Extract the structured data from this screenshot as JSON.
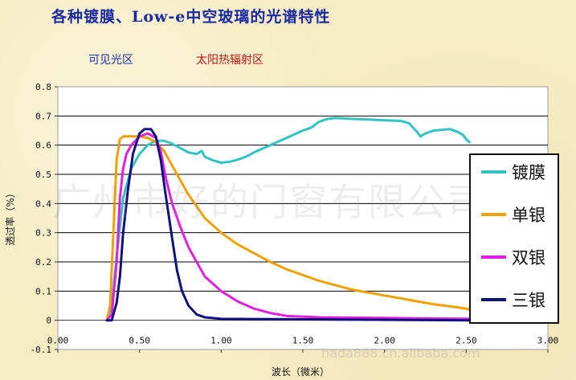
{
  "header": {
    "title": "各种镀膜、Low-e中空玻璃的光谱特性",
    "region_visible": "可见光区",
    "region_solar": "太阳热辐射区"
  },
  "watermarks": [
    "广州市好的门窗有限公司",
    "hada888.cn.alibaba.com"
  ],
  "chart_data": {
    "type": "line",
    "xlabel": "波长（微米）",
    "ylabel": "透过率（%）",
    "xlim": [
      0,
      3.0
    ],
    "ylim": [
      -0.1,
      0.8
    ],
    "x_ticks": [
      "0.00",
      "0.50",
      "1.00",
      "1.50",
      "2.00",
      "2.50",
      "3.00"
    ],
    "y_ticks": [
      "-0.1",
      "0",
      "0.1",
      "0.2",
      "0.3",
      "0.4",
      "0.5",
      "0.6",
      "0.7",
      "0.8"
    ],
    "grid": "horizontal",
    "legend_position": "right",
    "series": [
      {
        "name": "镀膜",
        "color": "#33c2c2",
        "points": [
          [
            0.3,
            0.0
          ],
          [
            0.33,
            0.05
          ],
          [
            0.36,
            0.22
          ],
          [
            0.4,
            0.42
          ],
          [
            0.45,
            0.52
          ],
          [
            0.5,
            0.57
          ],
          [
            0.55,
            0.6
          ],
          [
            0.6,
            0.615
          ],
          [
            0.65,
            0.615
          ],
          [
            0.7,
            0.605
          ],
          [
            0.75,
            0.59
          ],
          [
            0.8,
            0.575
          ],
          [
            0.85,
            0.57
          ],
          [
            0.88,
            0.58
          ],
          [
            0.9,
            0.56
          ],
          [
            0.95,
            0.548
          ],
          [
            1.0,
            0.54
          ],
          [
            1.05,
            0.543
          ],
          [
            1.1,
            0.55
          ],
          [
            1.15,
            0.56
          ],
          [
            1.2,
            0.575
          ],
          [
            1.3,
            0.6
          ],
          [
            1.4,
            0.625
          ],
          [
            1.5,
            0.65
          ],
          [
            1.55,
            0.66
          ],
          [
            1.6,
            0.68
          ],
          [
            1.65,
            0.69
          ],
          [
            1.7,
            0.693
          ],
          [
            1.8,
            0.69
          ],
          [
            1.9,
            0.688
          ],
          [
            2.0,
            0.685
          ],
          [
            2.1,
            0.683
          ],
          [
            2.15,
            0.675
          ],
          [
            2.2,
            0.645
          ],
          [
            2.22,
            0.63
          ],
          [
            2.25,
            0.64
          ],
          [
            2.3,
            0.65
          ],
          [
            2.4,
            0.655
          ],
          [
            2.45,
            0.645
          ],
          [
            2.48,
            0.635
          ],
          [
            2.5,
            0.62
          ],
          [
            2.52,
            0.61
          ]
        ]
      },
      {
        "name": "单银",
        "color": "#f0a000",
        "points": [
          [
            0.3,
            0.0
          ],
          [
            0.32,
            0.05
          ],
          [
            0.34,
            0.3
          ],
          [
            0.36,
            0.55
          ],
          [
            0.38,
            0.62
          ],
          [
            0.4,
            0.63
          ],
          [
            0.45,
            0.63
          ],
          [
            0.5,
            0.63
          ],
          [
            0.55,
            0.625
          ],
          [
            0.6,
            0.61
          ],
          [
            0.65,
            0.58
          ],
          [
            0.7,
            0.53
          ],
          [
            0.75,
            0.48
          ],
          [
            0.8,
            0.43
          ],
          [
            0.9,
            0.35
          ],
          [
            1.0,
            0.3
          ],
          [
            1.1,
            0.26
          ],
          [
            1.2,
            0.23
          ],
          [
            1.3,
            0.2
          ],
          [
            1.4,
            0.175
          ],
          [
            1.5,
            0.155
          ],
          [
            1.6,
            0.135
          ],
          [
            1.7,
            0.12
          ],
          [
            1.8,
            0.105
          ],
          [
            1.9,
            0.095
          ],
          [
            2.0,
            0.085
          ],
          [
            2.1,
            0.075
          ],
          [
            2.2,
            0.065
          ],
          [
            2.3,
            0.055
          ],
          [
            2.4,
            0.048
          ],
          [
            2.5,
            0.04
          ],
          [
            2.53,
            0.035
          ]
        ]
      },
      {
        "name": "双银",
        "color": "#e020e0",
        "points": [
          [
            0.3,
            0.0
          ],
          [
            0.33,
            0.02
          ],
          [
            0.36,
            0.2
          ],
          [
            0.38,
            0.42
          ],
          [
            0.4,
            0.52
          ],
          [
            0.42,
            0.57
          ],
          [
            0.45,
            0.6
          ],
          [
            0.5,
            0.63
          ],
          [
            0.55,
            0.64
          ],
          [
            0.6,
            0.625
          ],
          [
            0.63,
            0.58
          ],
          [
            0.66,
            0.49
          ],
          [
            0.7,
            0.4
          ],
          [
            0.75,
            0.32
          ],
          [
            0.8,
            0.25
          ],
          [
            0.85,
            0.2
          ],
          [
            0.9,
            0.15
          ],
          [
            1.0,
            0.1
          ],
          [
            1.1,
            0.065
          ],
          [
            1.2,
            0.04
          ],
          [
            1.3,
            0.025
          ],
          [
            1.4,
            0.015
          ],
          [
            1.6,
            0.01
          ],
          [
            2.0,
            0.008
          ],
          [
            2.53,
            0.005
          ]
        ]
      },
      {
        "name": "三银",
        "color": "#101080",
        "points": [
          [
            0.3,
            0.0
          ],
          [
            0.33,
            0.0
          ],
          [
            0.36,
            0.06
          ],
          [
            0.38,
            0.15
          ],
          [
            0.4,
            0.3
          ],
          [
            0.43,
            0.45
          ],
          [
            0.46,
            0.57
          ],
          [
            0.5,
            0.64
          ],
          [
            0.53,
            0.655
          ],
          [
            0.57,
            0.655
          ],
          [
            0.6,
            0.63
          ],
          [
            0.63,
            0.55
          ],
          [
            0.66,
            0.43
          ],
          [
            0.7,
            0.28
          ],
          [
            0.73,
            0.17
          ],
          [
            0.76,
            0.1
          ],
          [
            0.8,
            0.05
          ],
          [
            0.85,
            0.02
          ],
          [
            0.9,
            0.01
          ],
          [
            1.0,
            0.005
          ],
          [
            2.53,
            0.0
          ]
        ]
      }
    ]
  }
}
